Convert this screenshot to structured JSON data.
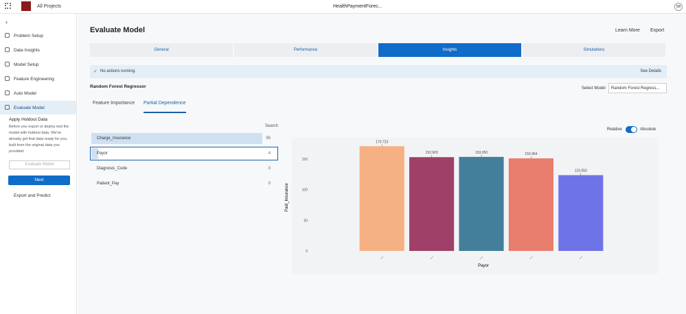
{
  "topbar": {
    "home": "All Projects",
    "project": "HealthPaymentForec...",
    "avatar": "SB"
  },
  "sidebar": {
    "items": [
      "Problem Setup",
      "Data Insights",
      "Model Setup",
      "Feature Engineering",
      "Auto Model",
      "Evaluate Model"
    ],
    "holdout": {
      "title": "Apply Holdout Data",
      "text": "Before you export or deploy test the model with holdout data. We've already got that data ready for you, built from the original data you provided.",
      "button": "Evaluate Model",
      "next": "Next"
    },
    "export": "Export and Predict"
  },
  "header": {
    "title": "Evaluate Model",
    "learn": "Learn More",
    "export": "Export"
  },
  "tabs": [
    "General",
    "Performance",
    "Insights",
    "Simulations"
  ],
  "active_tab": 2,
  "status": {
    "text": "No actions running.",
    "link": "See Details"
  },
  "model": {
    "name": "Random Forest Regressor",
    "select_label": "Select Model",
    "selected": "Random Forest Regress..."
  },
  "subtabs": [
    "Feature Importance",
    "Partial Dependence"
  ],
  "active_subtab": 1,
  "search": "Search",
  "features": [
    {
      "name": "Charge_Insurance",
      "value": 95
    },
    {
      "name": "Payor",
      "value": 4
    },
    {
      "name": "Diagnosis_Code",
      "value": 0
    },
    {
      "name": "Patient_Pay",
      "value": 0
    }
  ],
  "toggle": {
    "left": "Relative",
    "right": "Absolute"
  },
  "chart_data": {
    "type": "bar",
    "x_label": "Payor",
    "y_label": "Paid_Insurance",
    "categories": [
      null,
      null,
      null,
      null,
      null
    ],
    "values": [
      170.723,
      152.903,
      153.35,
      150.964,
      123.55
    ],
    "value_labels": [
      "170.723",
      "152.903",
      "153.350",
      "150.964",
      "123.550"
    ],
    "colors": [
      "#f5b183",
      "#9e4068",
      "#437f9b",
      "#e87d6e",
      "#6f73e8"
    ],
    "ylim": [
      0,
      180
    ],
    "yticks": [
      0,
      50,
      100,
      150
    ],
    "grid": false
  }
}
